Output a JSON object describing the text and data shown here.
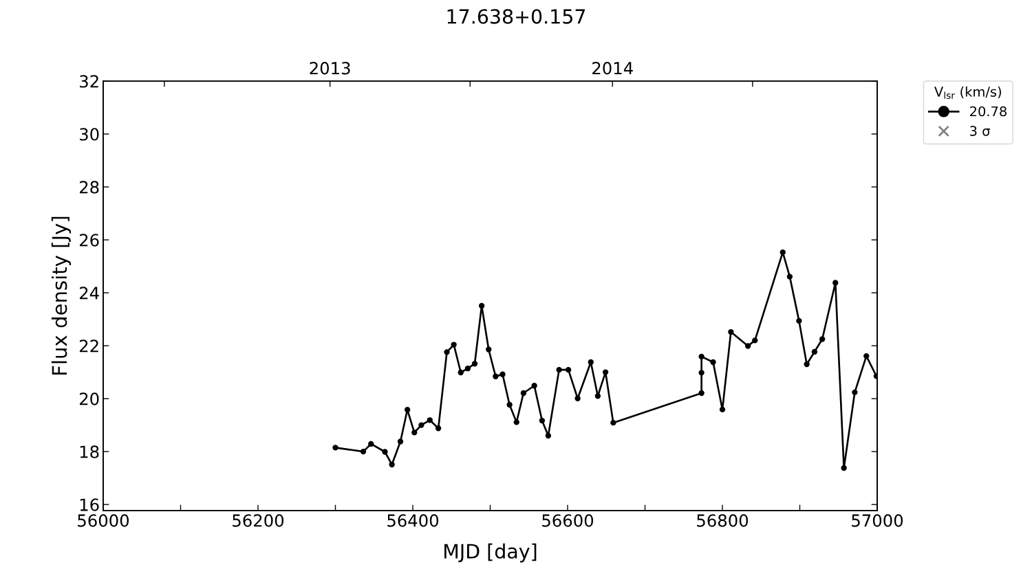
{
  "chart_data": {
    "type": "line",
    "title": "17.638+0.157",
    "xlabel": "MJD [day]",
    "ylabel": "Flux density [Jy]",
    "legend_title": "V$_{lsr}$ (km/s)",
    "xlim": [
      56000,
      57000
    ],
    "xticks": [
      56000,
      {
        "value": 56100,
        "label": null
      },
      56200,
      {
        "value": 56300,
        "label": null
      },
      56400,
      {
        "value": 56500,
        "label": null
      },
      56600,
      {
        "value": 56700,
        "label": null
      },
      56800,
      {
        "value": 56900,
        "label": null
      },
      57000
    ],
    "ylim": [
      15.77,
      32
    ],
    "yticks": [
      16,
      18,
      20,
      22,
      24,
      26,
      28,
      30,
      32
    ],
    "x2lim": [
      "2012-03-14",
      "2014-12-09"
    ],
    "x2ticks": [
      {
        "value": "2012-06-01",
        "label": null
      },
      {
        "value": "2013-01-01",
        "label": "2013"
      },
      {
        "value": "2013-07-01",
        "label": null
      },
      {
        "value": "2014-01-01",
        "label": "2014"
      },
      {
        "value": "2014-07-01",
        "label": null
      }
    ],
    "legend": "top right",
    "grid": false,
    "series": [
      {
        "name": "20.78",
        "color": "#000000",
        "marker": "circle",
        "line_style": "solid",
        "x": [
          56300,
          56336,
          56346,
          56364,
          56373,
          56384,
          56393,
          56402,
          56411,
          56422,
          56433,
          56444,
          56453,
          56462,
          56471,
          56480,
          56489,
          56498,
          56507,
          56516,
          56525,
          56534,
          56543,
          56557,
          56567,
          56575,
          56589,
          56601,
          56613,
          56630,
          56639,
          56649,
          56659,
          56773,
          56773,
          56773,
          56788,
          56800,
          56811,
          56833,
          56842,
          56878,
          56887,
          56899,
          56909,
          56919,
          56929,
          56946,
          56957,
          56971,
          56986,
          56999
        ],
        "values": [
          18.15,
          18.0,
          18.29,
          17.99,
          17.51,
          18.38,
          19.58,
          18.72,
          19.0,
          19.19,
          18.88,
          21.76,
          22.04,
          20.99,
          21.14,
          21.32,
          23.51,
          21.86,
          20.84,
          20.92,
          19.77,
          19.11,
          20.21,
          20.49,
          19.17,
          18.6,
          21.09,
          21.09,
          20.01,
          21.38,
          20.1,
          21.0,
          19.09,
          20.21,
          20.98,
          21.59,
          21.38,
          19.59,
          22.52,
          21.99,
          22.2,
          25.53,
          24.61,
          22.94,
          21.3,
          21.77,
          22.25,
          24.38,
          17.38,
          20.24,
          21.61,
          20.85
        ]
      },
      {
        "name": "3 σ",
        "type": "scatter",
        "color": "#808080",
        "marker": "cross"
      }
    ]
  }
}
